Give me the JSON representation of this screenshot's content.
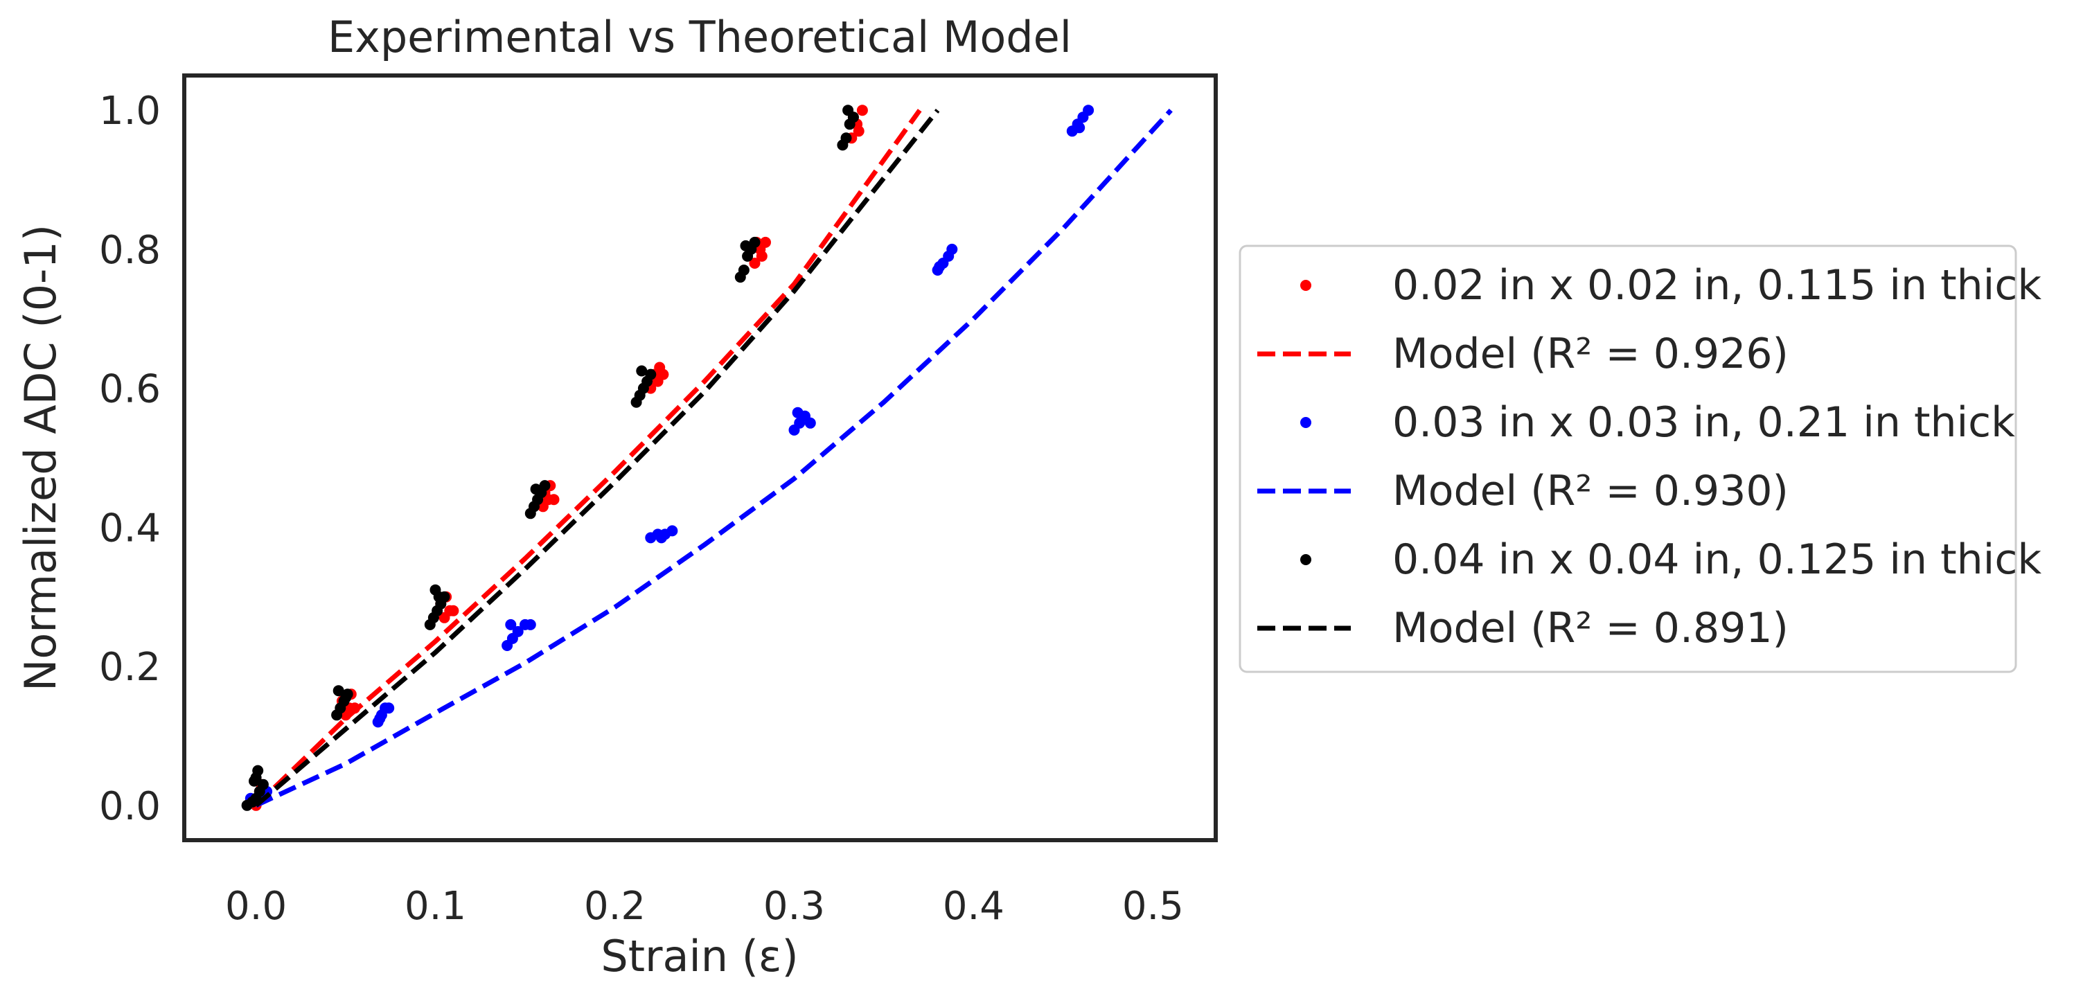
{
  "chart_data": {
    "type": "scatter",
    "title": "Experimental vs Theoretical Model",
    "xlabel": "Strain (ε)",
    "ylabel": "Normalized ADC (0-1)",
    "xlim": [
      -0.04,
      0.535
    ],
    "ylim": [
      -0.05,
      1.05
    ],
    "xticks": [
      0.0,
      0.1,
      0.2,
      0.3,
      0.4,
      0.5
    ],
    "yticks": [
      0.0,
      0.2,
      0.4,
      0.6,
      0.8,
      1.0
    ],
    "xtick_labels": [
      "0.0",
      "0.1",
      "0.2",
      "0.3",
      "0.4",
      "0.5"
    ],
    "ytick_labels": [
      "0.0",
      "0.2",
      "0.4",
      "0.6",
      "0.8",
      "1.0"
    ],
    "grid": false,
    "legend_position": "outside-right",
    "series": [
      {
        "name": "0.02 in x 0.02 in, 0.115 in thick",
        "kind": "points",
        "color": "#ff0000",
        "points": [
          [
            0.0,
            0.0
          ],
          [
            0.004,
            0.01
          ],
          [
            0.002,
            0.02
          ],
          [
            -0.002,
            0.005
          ],
          [
            0.003,
            0.03
          ],
          [
            0.05,
            0.13
          ],
          [
            0.052,
            0.14
          ],
          [
            0.055,
            0.14
          ],
          [
            0.048,
            0.15
          ],
          [
            0.053,
            0.16
          ],
          [
            0.105,
            0.27
          ],
          [
            0.108,
            0.28
          ],
          [
            0.103,
            0.29
          ],
          [
            0.11,
            0.28
          ],
          [
            0.106,
            0.3
          ],
          [
            0.16,
            0.43
          ],
          [
            0.163,
            0.44
          ],
          [
            0.166,
            0.44
          ],
          [
            0.161,
            0.45
          ],
          [
            0.164,
            0.46
          ],
          [
            0.22,
            0.6
          ],
          [
            0.224,
            0.61
          ],
          [
            0.227,
            0.62
          ],
          [
            0.222,
            0.62
          ],
          [
            0.225,
            0.63
          ],
          [
            0.278,
            0.78
          ],
          [
            0.281,
            0.8
          ],
          [
            0.284,
            0.81
          ],
          [
            0.279,
            0.81
          ],
          [
            0.282,
            0.79
          ],
          [
            0.332,
            0.96
          ],
          [
            0.335,
            0.98
          ],
          [
            0.338,
            1.0
          ],
          [
            0.333,
            0.99
          ],
          [
            0.336,
            0.97
          ]
        ]
      },
      {
        "name": "Model (R² = 0.926)",
        "kind": "curve",
        "color": "#ff0000",
        "x_end": 0.37,
        "curve": [
          [
            0.0,
            0.0
          ],
          [
            0.05,
            0.125
          ],
          [
            0.1,
            0.236
          ],
          [
            0.15,
            0.355
          ],
          [
            0.2,
            0.48
          ],
          [
            0.25,
            0.61
          ],
          [
            0.3,
            0.75
          ],
          [
            0.37,
            1.0
          ]
        ]
      },
      {
        "name": "0.03 in x 0.03 in, 0.21 in thick",
        "kind": "points",
        "color": "#0000ff",
        "points": [
          [
            0.0,
            0.01
          ],
          [
            0.003,
            0.015
          ],
          [
            0.006,
            0.02
          ],
          [
            -0.003,
            0.01
          ],
          [
            0.004,
            0.025
          ],
          [
            0.068,
            0.12
          ],
          [
            0.07,
            0.13
          ],
          [
            0.072,
            0.14
          ],
          [
            0.074,
            0.14
          ],
          [
            0.069,
            0.125
          ],
          [
            0.14,
            0.23
          ],
          [
            0.143,
            0.24
          ],
          [
            0.146,
            0.25
          ],
          [
            0.15,
            0.26
          ],
          [
            0.153,
            0.26
          ],
          [
            0.142,
            0.26
          ],
          [
            0.22,
            0.385
          ],
          [
            0.224,
            0.39
          ],
          [
            0.228,
            0.39
          ],
          [
            0.232,
            0.395
          ],
          [
            0.226,
            0.385
          ],
          [
            0.3,
            0.54
          ],
          [
            0.303,
            0.55
          ],
          [
            0.306,
            0.56
          ],
          [
            0.309,
            0.55
          ],
          [
            0.302,
            0.565
          ],
          [
            0.38,
            0.77
          ],
          [
            0.383,
            0.78
          ],
          [
            0.386,
            0.79
          ],
          [
            0.388,
            0.8
          ],
          [
            0.381,
            0.775
          ],
          [
            0.455,
            0.97
          ],
          [
            0.458,
            0.98
          ],
          [
            0.461,
            0.99
          ],
          [
            0.464,
            1.0
          ],
          [
            0.459,
            0.975
          ]
        ]
      },
      {
        "name": "Model (R² = 0.930)",
        "kind": "curve",
        "color": "#0000ff",
        "x_end": 0.51,
        "curve": [
          [
            0.0,
            0.0
          ],
          [
            0.05,
            0.06
          ],
          [
            0.1,
            0.133
          ],
          [
            0.15,
            0.205
          ],
          [
            0.2,
            0.285
          ],
          [
            0.25,
            0.375
          ],
          [
            0.3,
            0.47
          ],
          [
            0.35,
            0.58
          ],
          [
            0.4,
            0.7
          ],
          [
            0.45,
            0.83
          ],
          [
            0.51,
            1.0
          ]
        ]
      },
      {
        "name": "0.04 in x 0.04 in, 0.125 in thick",
        "kind": "points",
        "color": "#000000",
        "points": [
          [
            -0.005,
            0.0
          ],
          [
            -0.002,
            0.005
          ],
          [
            0.0,
            0.01
          ],
          [
            0.002,
            0.02
          ],
          [
            0.004,
            0.03
          ],
          [
            -0.001,
            0.035
          ],
          [
            0.0,
            0.04
          ],
          [
            0.001,
            0.05
          ],
          [
            0.045,
            0.13
          ],
          [
            0.047,
            0.14
          ],
          [
            0.049,
            0.15
          ],
          [
            0.051,
            0.16
          ],
          [
            0.046,
            0.165
          ],
          [
            0.05,
            0.155
          ],
          [
            0.097,
            0.26
          ],
          [
            0.099,
            0.27
          ],
          [
            0.101,
            0.28
          ],
          [
            0.103,
            0.29
          ],
          [
            0.105,
            0.3
          ],
          [
            0.1,
            0.31
          ],
          [
            0.102,
            0.3
          ],
          [
            0.153,
            0.42
          ],
          [
            0.155,
            0.43
          ],
          [
            0.157,
            0.44
          ],
          [
            0.159,
            0.45
          ],
          [
            0.161,
            0.46
          ],
          [
            0.156,
            0.455
          ],
          [
            0.212,
            0.58
          ],
          [
            0.214,
            0.59
          ],
          [
            0.216,
            0.6
          ],
          [
            0.218,
            0.61
          ],
          [
            0.22,
            0.62
          ],
          [
            0.215,
            0.625
          ],
          [
            0.27,
            0.76
          ],
          [
            0.272,
            0.77
          ],
          [
            0.274,
            0.79
          ],
          [
            0.276,
            0.8
          ],
          [
            0.278,
            0.81
          ],
          [
            0.273,
            0.805
          ],
          [
            0.327,
            0.95
          ],
          [
            0.329,
            0.96
          ],
          [
            0.331,
            0.98
          ],
          [
            0.333,
            0.99
          ],
          [
            0.33,
            1.0
          ]
        ]
      },
      {
        "name": "Model (R² = 0.891)",
        "kind": "curve",
        "color": "#000000",
        "x_end": 0.38,
        "curve": [
          [
            0.0,
            0.0
          ],
          [
            0.05,
            0.11
          ],
          [
            0.1,
            0.22
          ],
          [
            0.15,
            0.34
          ],
          [
            0.2,
            0.465
          ],
          [
            0.25,
            0.595
          ],
          [
            0.3,
            0.74
          ],
          [
            0.38,
            1.0
          ]
        ]
      }
    ]
  }
}
